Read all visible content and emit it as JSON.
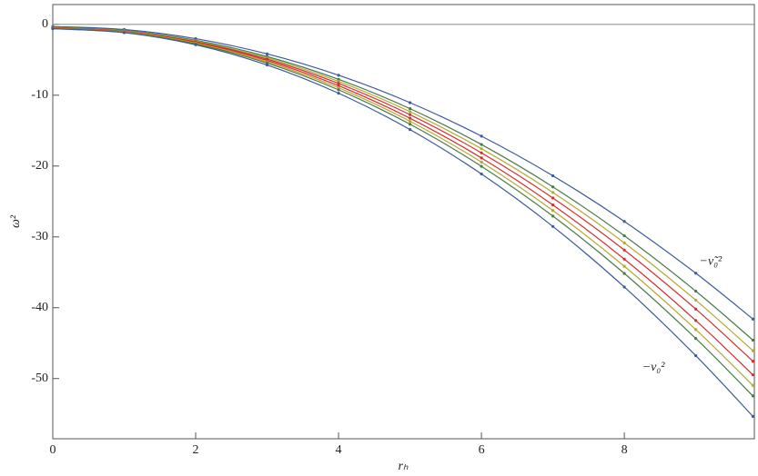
{
  "chart_data": {
    "type": "line",
    "x_label": "rₕ",
    "y_label": "ω²",
    "x": [
      0,
      1,
      2,
      3,
      4,
      5,
      6,
      7,
      8,
      9,
      9.8
    ],
    "series": [
      {
        "color": "#3d5a99",
        "values": [
          -0.3,
          -0.73,
          -2.02,
          -4.17,
          -7.18,
          -11.05,
          -15.78,
          -21.37,
          -27.82,
          -35.13,
          -41.6
        ]
      },
      {
        "color": "#4a7a4a",
        "values": [
          -0.4,
          -0.86,
          -2.24,
          -4.54,
          -7.76,
          -11.9,
          -16.96,
          -22.94,
          -29.84,
          -37.66,
          -44.58
        ]
      },
      {
        "color": "#b5a832",
        "values": [
          -0.45,
          -0.93,
          -2.35,
          -4.73,
          -8.05,
          -12.33,
          -17.55,
          -23.73,
          -30.85,
          -38.93,
          -46.07
        ]
      },
      {
        "color": "#d03030",
        "values": [
          -0.5,
          -0.99,
          -2.46,
          -4.91,
          -8.34,
          -12.75,
          -18.14,
          -24.51,
          -31.86,
          -40.19,
          -47.56
        ]
      },
      {
        "color": "#d03030",
        "values": [
          -0.5,
          -1.01,
          -2.54,
          -5.09,
          -8.66,
          -13.25,
          -18.86,
          -25.49,
          -33.14,
          -41.81,
          -49.48
        ]
      },
      {
        "color": "#b5a832",
        "values": [
          -0.55,
          -1.08,
          -2.65,
          -5.28,
          -8.95,
          -13.68,
          -19.45,
          -26.28,
          -34.15,
          -43.08,
          -50.97
        ]
      },
      {
        "color": "#4a7a4a",
        "values": [
          -0.6,
          -1.14,
          -2.76,
          -5.46,
          -9.24,
          -14.1,
          -20.04,
          -27.06,
          -35.16,
          -44.34,
          -52.46
        ]
      },
      {
        "color": "#3d5a99",
        "values": [
          -0.6,
          -1.17,
          -2.88,
          -5.73,
          -9.72,
          -14.85,
          -21.12,
          -28.53,
          -37.08,
          -46.77,
          -55.34
        ]
      }
    ],
    "annotations": [
      {
        "text": "−ν̃₀²",
        "x": 9.05,
        "y": -33.5
      },
      {
        "text": "−ν₀²",
        "x": 8.25,
        "y": -48.5
      }
    ],
    "xlim": [
      0,
      9.82
    ],
    "ylim": [
      -58.5,
      2.8
    ],
    "xticks": [
      0,
      2,
      4,
      6,
      8
    ],
    "yticks": [
      0,
      -10,
      -20,
      -30,
      -40,
      -50
    ],
    "zero_line": true
  }
}
